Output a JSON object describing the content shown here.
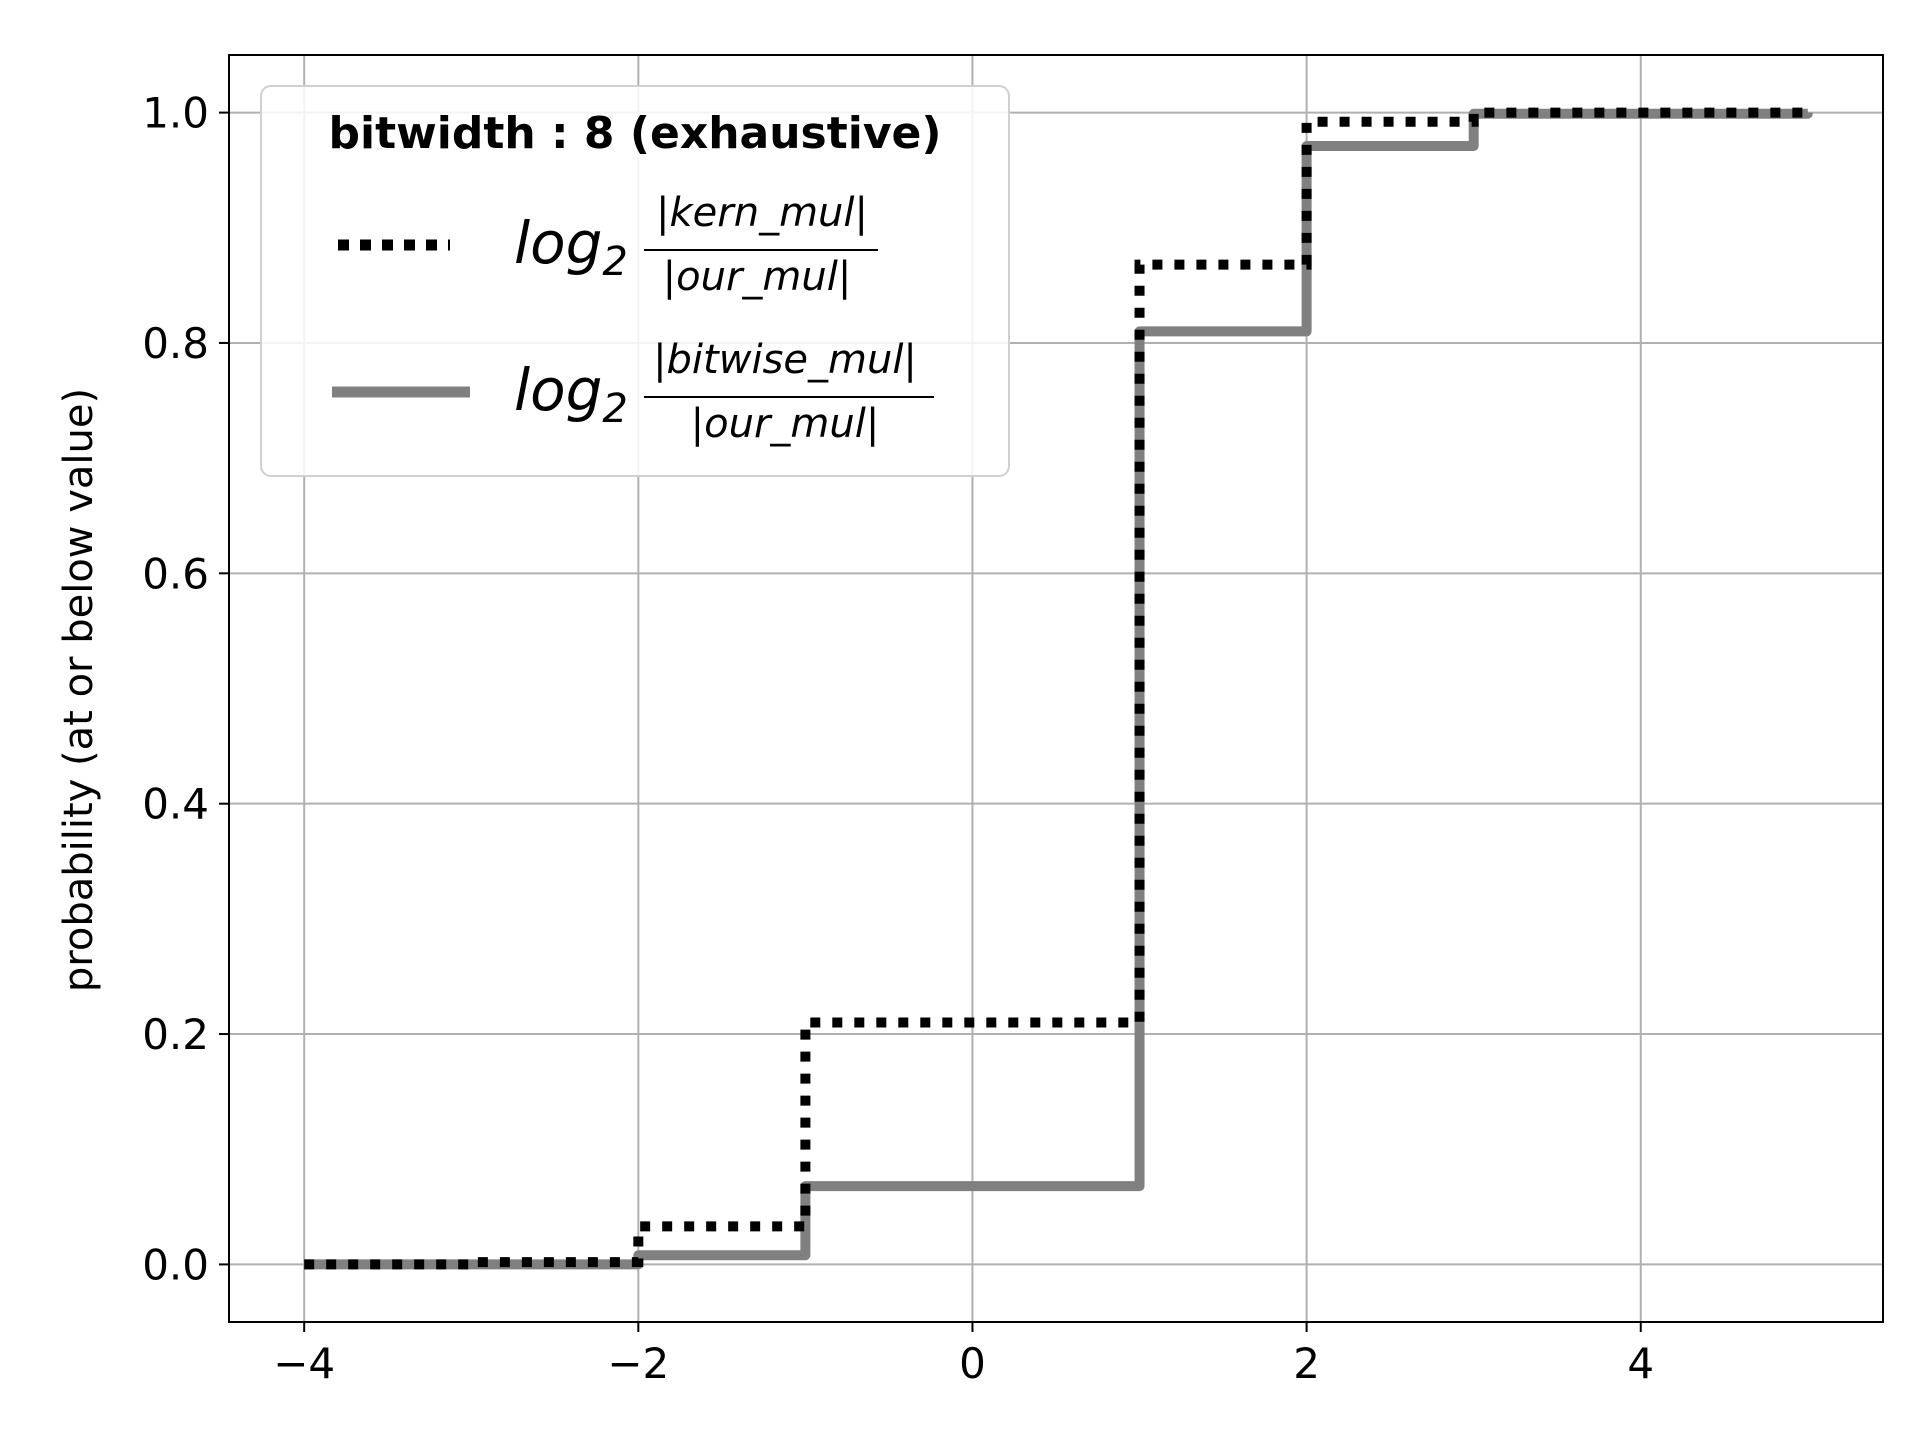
{
  "chart_data": {
    "type": "line",
    "drawstyle": "steps-post",
    "title": "",
    "xlabel": "",
    "ylabel": "probability (at or below value)",
    "xlim": [
      -4.45,
      5.45
    ],
    "ylim": [
      -0.05,
      1.05
    ],
    "x_ticks": [
      -4,
      -2,
      0,
      2,
      4
    ],
    "x_tick_labels": [
      "−4",
      "−2",
      "0",
      "2",
      "4"
    ],
    "y_ticks": [
      0.0,
      0.2,
      0.4,
      0.6,
      0.8,
      1.0
    ],
    "y_tick_labels": [
      "0.0",
      "0.2",
      "0.4",
      "0.6",
      "0.8",
      "1.0"
    ],
    "grid": true,
    "legend": {
      "placement": "upper-left",
      "title": "bitwidth :  8 (exhaustive)"
    },
    "series": [
      {
        "name": "log2 |kern_mul| / |our_mul|",
        "label_base": "log",
        "label_sub": "2",
        "label_num": "|kern_mul|",
        "label_den": "|our_mul|",
        "style": "dotted",
        "color": "#000000",
        "x": [
          -4,
          -3,
          -2,
          -1,
          1,
          2,
          3,
          5
        ],
        "y": [
          0.0,
          0.002,
          0.033,
          0.21,
          0.868,
          0.992,
          1.0,
          1.0
        ]
      },
      {
        "name": "log2 |bitwise_mul| / |our_mul|",
        "label_base": "log",
        "label_sub": "2",
        "label_num": "|bitwise_mul|",
        "label_den": "|our_mul|",
        "style": "solid",
        "color": "#808080",
        "x": [
          -4,
          -2,
          -1,
          1,
          2,
          3,
          5
        ],
        "y": [
          0.0,
          0.008,
          0.068,
          0.81,
          0.971,
          0.999,
          1.0
        ]
      }
    ]
  }
}
